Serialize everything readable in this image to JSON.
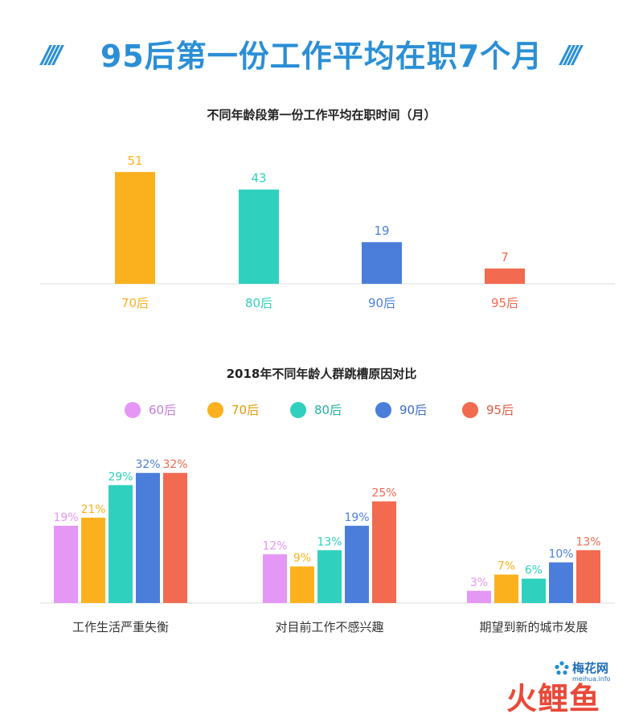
{
  "header": {
    "title": "95后第一份工作平均在职7个月",
    "deco_left": "////",
    "deco_right": "////"
  },
  "colors": {
    "title": "#2b8fd6",
    "60后": "#e597f5",
    "70后": "#fbb11d",
    "80后": "#2fd1be",
    "90后": "#4b7edb",
    "95后": "#f26a4f"
  },
  "chart_data": [
    {
      "type": "bar",
      "title": "不同年龄段第一份工作平均在职时间（月）",
      "categories": [
        "70后",
        "80后",
        "90后",
        "95后"
      ],
      "values": [
        51,
        43,
        19,
        7
      ],
      "colors": [
        "#fbb11d",
        "#2fd1be",
        "#4b7edb",
        "#f26a4f"
      ],
      "ylim": [
        0,
        55
      ],
      "grid": false
    },
    {
      "type": "bar",
      "title": "2018年不同年龄人群跳槽原因对比",
      "categories": [
        "工作生活严重失衡",
        "对目前工作不感兴趣",
        "期望到新的城市发展"
      ],
      "series": [
        {
          "name": "60后",
          "color": "#e597f5",
          "values": [
            19,
            12,
            3
          ],
          "labels": [
            "19%",
            "12%",
            "3%"
          ]
        },
        {
          "name": "70后",
          "color": "#fbb11d",
          "values": [
            21,
            9,
            7
          ],
          "labels": [
            "21%",
            "9%",
            "7%"
          ]
        },
        {
          "name": "80后",
          "color": "#2fd1be",
          "values": [
            29,
            13,
            6
          ],
          "labels": [
            "29%",
            "13%",
            "6%"
          ]
        },
        {
          "name": "90后",
          "color": "#4b7edb",
          "values": [
            32,
            19,
            10
          ],
          "labels": [
            "32%",
            "19%",
            "10%"
          ]
        },
        {
          "name": "95后",
          "color": "#f26a4f",
          "values": [
            32,
            25,
            13
          ],
          "labels": [
            "32%",
            "25%",
            "13%"
          ]
        }
      ],
      "ylim": [
        0,
        35
      ],
      "legend": "top",
      "grid": false
    }
  ],
  "brand": {
    "logo_text": "梅花网",
    "logo_sub": "meihua.info",
    "watermark": "火鲤鱼"
  }
}
